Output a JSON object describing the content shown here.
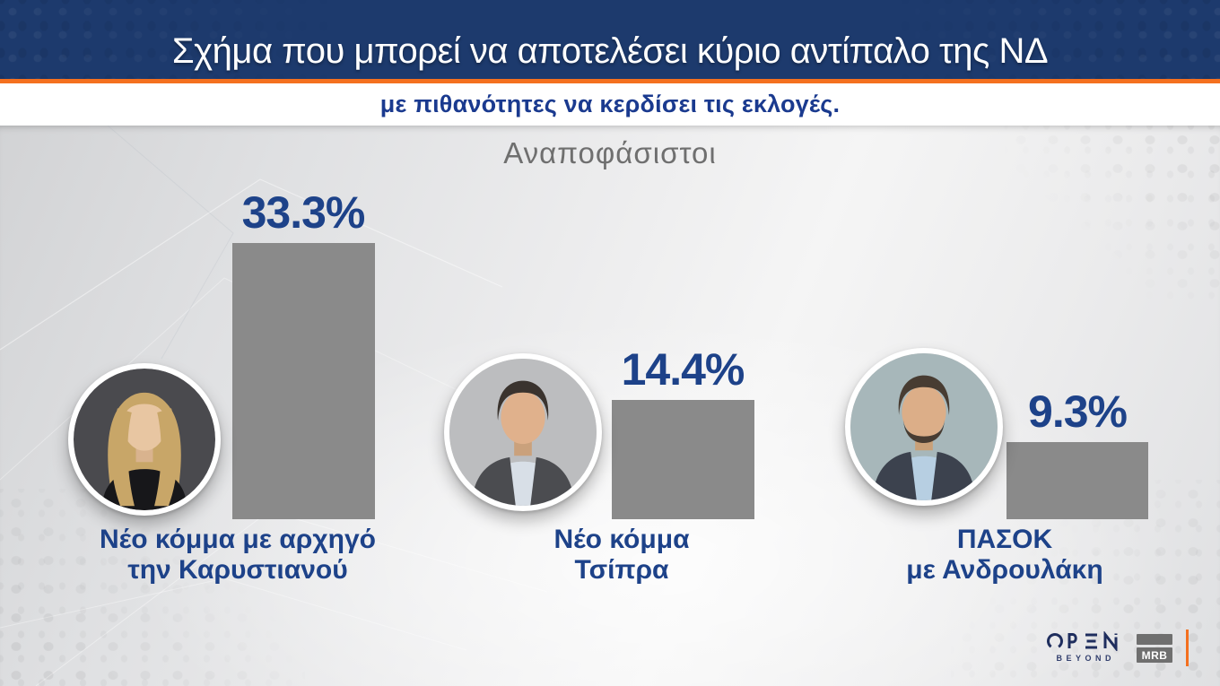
{
  "header": {
    "title": "Σχήμα που μπορεί να αποτελέσει κύριο αντίπαλο της ΝΔ",
    "subtitle": "με πιθανότητες να κερδίσει τις εκλογές."
  },
  "section_label": "Αναποφάσιστοι",
  "chart_data": {
    "type": "bar",
    "title": "Σχήμα που μπορεί να αποτελέσει κύριο αντίπαλο της ΝΔ",
    "subtitle": "με πιθανότητες να κερδίσει τις εκλογές.",
    "group": "Αναποφάσιστοι",
    "categories": [
      "Νέο κόμμα με αρχηγό την Καρυστιανού",
      "Νέο κόμμα Τσίπρα",
      "ΠΑΣΟΚ με Ανδρουλάκη"
    ],
    "values": [
      33.3,
      14.4,
      9.3
    ],
    "value_labels": [
      "33.3%",
      "14.4%",
      "9.3%"
    ],
    "ylim": [
      0,
      35
    ],
    "grid": false,
    "legend_position": "none",
    "bar_color": "#8a8a8a"
  },
  "groups": [
    {
      "value_label": "33.3%",
      "label_line1": "Νέο κόμμα με αρχηγό",
      "label_line2": "την Καρυστιανού"
    },
    {
      "value_label": "14.4%",
      "label_line1": "Νέο κόμμα",
      "label_line2": "Τσίπρα"
    },
    {
      "value_label": "9.3%",
      "label_line1": "ΠΑΣΟΚ",
      "label_line2": "με Ανδρουλάκη"
    }
  ],
  "footer": {
    "open_logo": "OPEN",
    "open_tagline": "BEYOND",
    "mrb_logo": "MRB"
  },
  "colors": {
    "header_bg": "#1d3a6d",
    "accent_orange": "#f4701f",
    "title_text": "#ffffff",
    "subtitle_text": "#1a3a8f",
    "section_label_text": "#6f6f6f",
    "value_text": "#1d4289",
    "label_text": "#1d4289",
    "bar_fill": "#8a8a8a"
  }
}
